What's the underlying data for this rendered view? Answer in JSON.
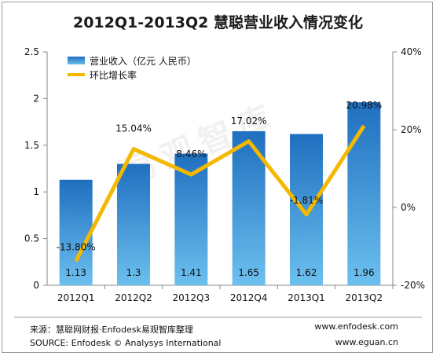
{
  "title": "2012Q1-2013Q2  慧聪营业收入情况变化",
  "watermark": "易观智库",
  "chart_data": {
    "type": "bar",
    "categories": [
      "2012Q1",
      "2012Q2",
      "2012Q3",
      "2012Q4",
      "2013Q1",
      "2013Q2"
    ],
    "series": [
      {
        "name": "营业收入（亿元  人民币）",
        "type": "bar",
        "axis": "left",
        "values": [
          1.13,
          1.3,
          1.41,
          1.65,
          1.62,
          1.96
        ],
        "value_labels": [
          "1.13",
          "1.3",
          "1.41",
          "1.65",
          "1.62",
          "1.96"
        ]
      },
      {
        "name": "环比增长率",
        "type": "line",
        "axis": "right",
        "values": [
          -13.8,
          15.04,
          8.46,
          17.02,
          -1.81,
          20.98
        ],
        "value_labels": [
          "-13.80%",
          "15.04%",
          "8.46%",
          "17.02%",
          "-1.81%",
          "20.98%"
        ]
      }
    ],
    "y_left": {
      "range": [
        0,
        2.5
      ],
      "ticks": [
        "0",
        "0.5",
        "1",
        "1.5",
        "2",
        "2.5"
      ]
    },
    "y_right": {
      "range": [
        -20,
        40
      ],
      "ticks": [
        "-20%",
        "0%",
        "20%",
        "40%"
      ]
    },
    "colors": {
      "bar_top": "#1f6fc0",
      "bar_bottom": "#6cc0ee",
      "line": "#f5b800"
    },
    "legend_position": "top-left",
    "grid": false
  },
  "footer": {
    "source_cn": "来源：慧聪网财报·Enfodesk易观智库整理",
    "source_en": "SOURCE: Enfodesk © Analysys International",
    "url1": "www.enfodesk.com",
    "url2": "www.eguan.cn"
  }
}
